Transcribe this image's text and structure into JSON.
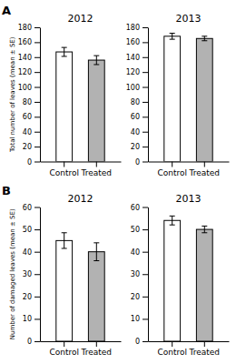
{
  "chart_data": [
    {
      "type": "bar",
      "title": "2012",
      "annotations": [
        "A"
      ],
      "ylabel": "Total number of leaves (mean ± SE)",
      "categories": [
        "Control",
        "Treated"
      ],
      "values": [
        147,
        136
      ],
      "errors": [
        6,
        6
      ],
      "colors": [
        "white",
        "#b2b2b2"
      ],
      "ylim": [
        0,
        180
      ],
      "yticks": [
        0,
        20,
        40,
        60,
        80,
        100,
        120,
        140,
        160,
        180
      ]
    },
    {
      "type": "bar",
      "title": "2013",
      "categories": [
        "Control",
        "Treated"
      ],
      "values": [
        168,
        165
      ],
      "errors": [
        4,
        3
      ],
      "colors": [
        "white",
        "#b2b2b2"
      ],
      "ylim": [
        0,
        180
      ],
      "yticks": [
        0,
        20,
        40,
        60,
        80,
        100,
        120,
        140,
        160,
        180
      ]
    },
    {
      "type": "bar",
      "title": "2012",
      "annotations": [
        "B"
      ],
      "ylabel": "Number of damaged leaves (mean ± SE)",
      "categories": [
        "Control",
        "Treated"
      ],
      "values": [
        45,
        40
      ],
      "errors": [
        3.5,
        4.0
      ],
      "colors": [
        "white",
        "#b2b2b2"
      ],
      "ylim": [
        0,
        60
      ],
      "yticks": [
        0,
        10,
        20,
        30,
        40,
        50,
        60
      ]
    },
    {
      "type": "bar",
      "title": "2013",
      "categories": [
        "Control",
        "Treated"
      ],
      "values": [
        54,
        50
      ],
      "errors": [
        2.0,
        1.5
      ],
      "colors": [
        "white",
        "#b2b2b2"
      ],
      "ylim": [
        0,
        60
      ],
      "yticks": [
        0,
        10,
        20,
        30,
        40,
        50,
        60
      ]
    }
  ]
}
